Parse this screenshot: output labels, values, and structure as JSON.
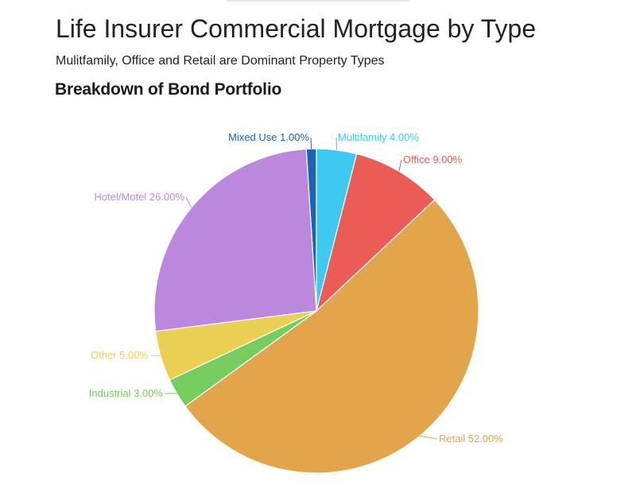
{
  "page": {
    "title": "Life Insurer Commercial Mortgage by Type",
    "subtitle": "Mulitfamily, Office and Retail are Dominant Property Types"
  },
  "chart_data": {
    "type": "pie",
    "title": "Breakdown of Bond Portfolio",
    "slices": [
      {
        "name": "Mixed Use",
        "value": 1.0,
        "label": "Mixed Use 1.00%",
        "color": "#1b64b4"
      },
      {
        "name": "Multifamily",
        "value": 4.0,
        "label": "Multifamily 4.00%",
        "color": "#3ec9f2"
      },
      {
        "name": "Office",
        "value": 9.0,
        "label": "Office 9.00%",
        "color": "#ea5d57"
      },
      {
        "name": "Retail",
        "value": 52.0,
        "label": "Retail 52.00%",
        "color": "#e3a54c"
      },
      {
        "name": "Industrial",
        "value": 3.0,
        "label": "Industrial 3.00%",
        "color": "#76cc5e"
      },
      {
        "name": "Other",
        "value": 5.0,
        "label": "Other 5.00%",
        "color": "#eacf55"
      },
      {
        "name": "Hotel/Motel",
        "value": 26.0,
        "label": "Hotel/Motel 26.00%",
        "color": "#bb88dd"
      }
    ]
  }
}
